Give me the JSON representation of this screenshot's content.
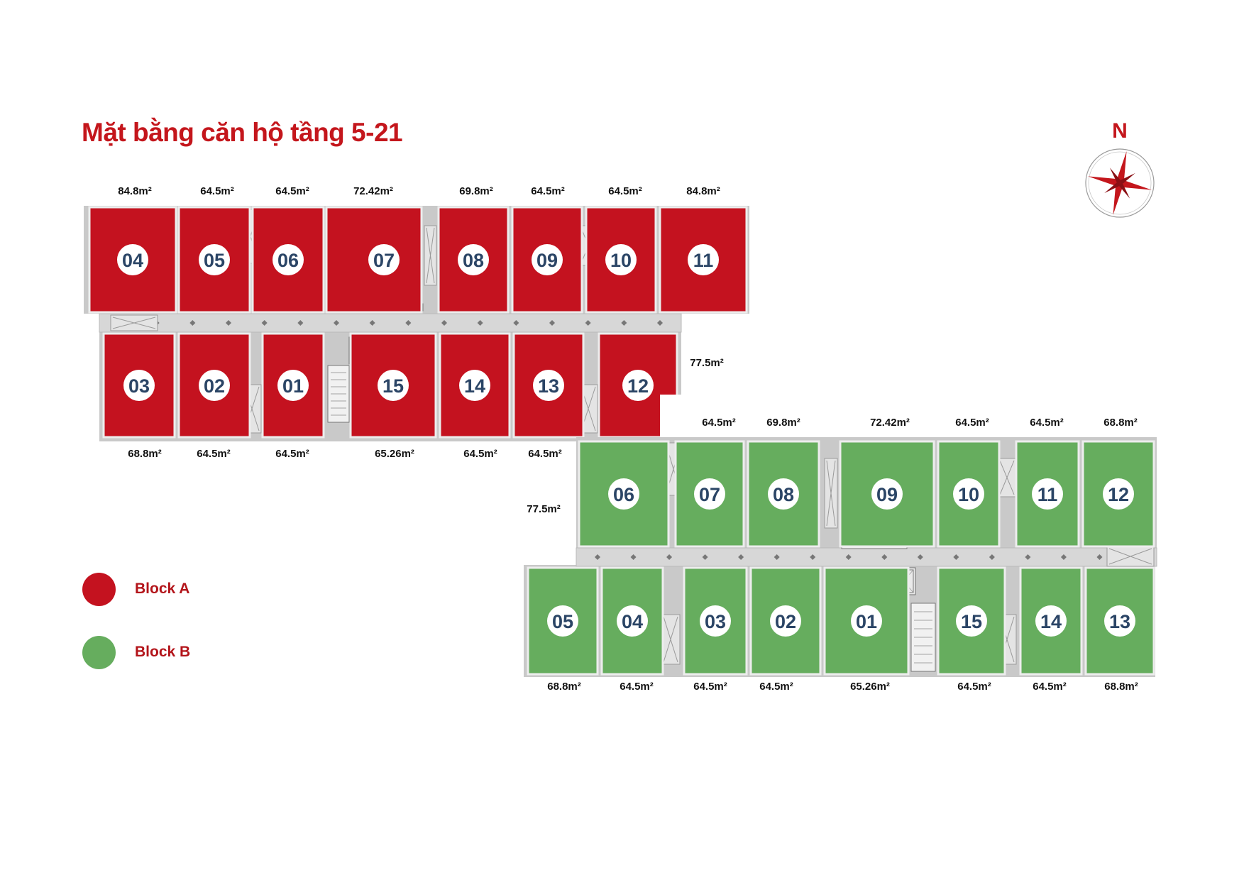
{
  "title": "Mặt bằng căn hộ tầng 5-21",
  "compass": {
    "label": "N",
    "icon": "compass-rose-icon"
  },
  "colors": {
    "block_a": "#c4121f",
    "block_b": "#66ad5e",
    "unit_number": "#2b4566",
    "title": "#c4161c"
  },
  "legend": [
    {
      "label": "Block A",
      "color": "#c4121f"
    },
    {
      "label": "Block B",
      "color": "#66ad5e"
    }
  ],
  "blocks": {
    "a": {
      "north_units": [
        {
          "number": "04",
          "area": "84.8m²"
        },
        {
          "number": "05",
          "area": "64.5m²"
        },
        {
          "number": "06",
          "area": "64.5m²"
        },
        {
          "number": "07",
          "area": "72.42m²"
        },
        {
          "number": "08",
          "area": "69.8m²"
        },
        {
          "number": "09",
          "area": "64.5m²"
        },
        {
          "number": "10",
          "area": "64.5m²"
        },
        {
          "number": "11",
          "area": "84.8m²"
        }
      ],
      "south_units": [
        {
          "number": "03",
          "area": "68.8m²"
        },
        {
          "number": "02",
          "area": "64.5m²"
        },
        {
          "number": "01",
          "area": "64.5m²"
        },
        {
          "number": "15",
          "area": "65.26m²"
        },
        {
          "number": "14",
          "area": "64.5m²"
        },
        {
          "number": "13",
          "area": "64.5m²"
        },
        {
          "number": "12",
          "area": "77.5m²"
        }
      ]
    },
    "b": {
      "north_units": [
        {
          "number": "06",
          "area": "77.5m²"
        },
        {
          "number": "07",
          "area": "64.5m²"
        },
        {
          "number": "08",
          "area": "69.8m²"
        },
        {
          "number": "09",
          "area": "72.42m²"
        },
        {
          "number": "10",
          "area": "64.5m²"
        },
        {
          "number": "11",
          "area": "64.5m²"
        },
        {
          "number": "12",
          "area": "68.8m²"
        }
      ],
      "south_units": [
        {
          "number": "05",
          "area": "68.8m²"
        },
        {
          "number": "04",
          "area": "64.5m²"
        },
        {
          "number": "03",
          "area": "64.5m²"
        },
        {
          "number": "02",
          "area": "64.5m²"
        },
        {
          "number": "01",
          "area": "65.26m²"
        },
        {
          "number": "15",
          "area": "64.5m²"
        },
        {
          "number": "14",
          "area": "64.5m²"
        },
        {
          "number": "13",
          "area": "68.8m²"
        }
      ]
    }
  }
}
